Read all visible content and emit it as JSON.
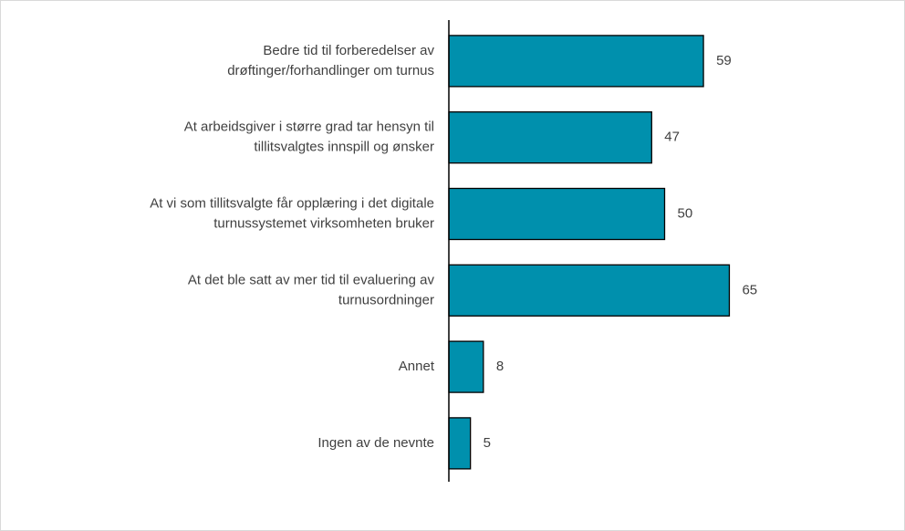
{
  "chart_data": {
    "type": "bar",
    "orientation": "horizontal",
    "categories": [
      "Bedre tid til forberedelser av\ndrøftinger/forhandlinger om turnus",
      "At arbeidsgiver i større grad tar hensyn til\ntillitsvalgtes innspill og ønsker",
      "At vi som tillitsvalgte får opplæring i det digitale\nturnussystemet virksomheten bruker",
      "At det ble satt av mer tid til evaluering av\nturnusordninger",
      "Annet",
      "Ingen av de nevnte"
    ],
    "values": [
      59,
      47,
      50,
      65,
      8,
      5
    ],
    "color": "#0090ad",
    "xlim": [
      0,
      100
    ]
  }
}
